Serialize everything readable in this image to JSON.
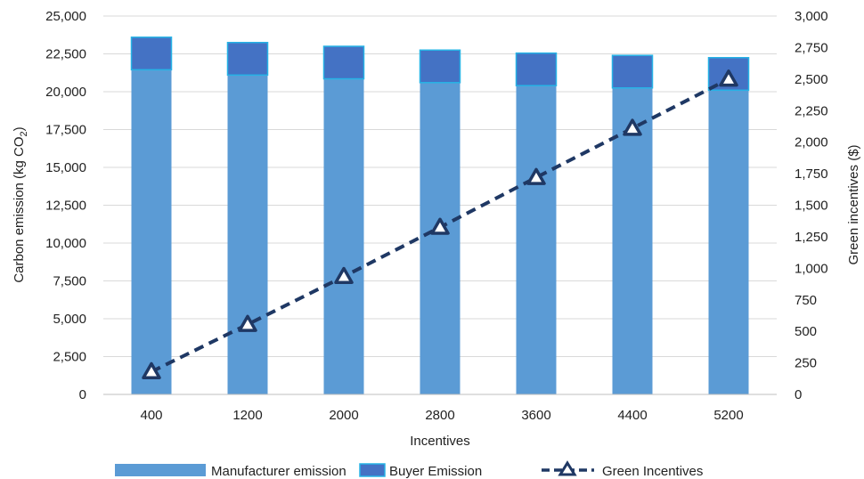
{
  "chart_data": {
    "type": "bar",
    "stacked": true,
    "categories": [
      "400",
      "1200",
      "2000",
      "2800",
      "3600",
      "4400",
      "5200"
    ],
    "series": [
      {
        "name": "Manufacturer emission",
        "type": "bar",
        "axis": "left",
        "color": "#5b9bd5",
        "values": [
          21450,
          21100,
          20850,
          20600,
          20400,
          20250,
          20100
        ]
      },
      {
        "name": "Buyer Emission",
        "type": "bar",
        "axis": "left",
        "color": "#4472c4",
        "values": [
          2150,
          2150,
          2150,
          2150,
          2150,
          2150,
          2150
        ]
      },
      {
        "name": "Green Incentives",
        "type": "line",
        "axis": "right",
        "color": "#1f3864",
        "line_style": "dashed",
        "marker": "triangle",
        "values": [
          180,
          555,
          935,
          1325,
          1720,
          2110,
          2500
        ]
      }
    ],
    "xlabel": "Incentives",
    "ylabel_left": "Carbon emission (kg CO2)",
    "ylabel_left_main": "Carbon emission (kg CO",
    "ylabel_left_sub": "2",
    "ylabel_left_close": ")",
    "ylabel_right": "Green incentives ($)",
    "ylim_left": [
      0,
      25000
    ],
    "ylim_right": [
      0,
      3000
    ],
    "yticks_left": [
      "0",
      "2,500",
      "5,000",
      "7,500",
      "10,000",
      "12,500",
      "15,000",
      "17,500",
      "20,000",
      "22,500",
      "25,000"
    ],
    "yticks_right": [
      "0",
      "250",
      "500",
      "750",
      "1,000",
      "1,250",
      "1,500",
      "1,750",
      "2,000",
      "2,250",
      "2,500",
      "2,750",
      "3,000"
    ],
    "grid": true,
    "legend_position": "bottom"
  }
}
